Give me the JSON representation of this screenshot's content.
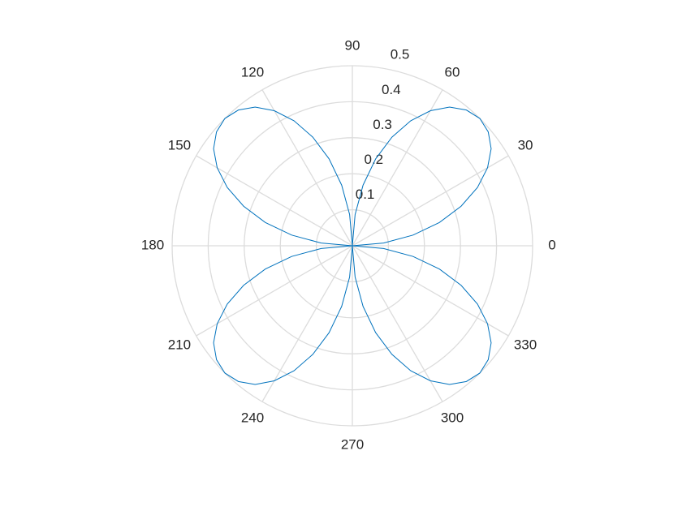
{
  "chart_data": {
    "type": "polar",
    "theta": [
      0,
      5,
      10,
      15,
      20,
      25,
      30,
      35,
      40,
      45,
      50,
      55,
      60,
      65,
      70,
      75,
      80,
      85,
      90,
      95,
      100,
      105,
      110,
      115,
      120,
      125,
      130,
      135,
      140,
      145,
      150,
      155,
      160,
      165,
      170,
      175,
      180,
      185,
      190,
      195,
      200,
      205,
      210,
      215,
      220,
      225,
      230,
      235,
      240,
      245,
      250,
      255,
      260,
      265,
      270,
      275,
      280,
      285,
      290,
      295,
      300,
      305,
      310,
      315,
      320,
      325,
      330,
      335,
      340,
      345,
      350,
      355,
      360
    ],
    "series": [
      {
        "color": "#0072bd",
        "values": [
          0,
          0.087,
          0.171,
          0.25,
          0.321,
          0.383,
          0.433,
          0.47,
          0.492,
          0.5,
          0.492,
          0.47,
          0.433,
          0.383,
          0.321,
          0.25,
          0.171,
          0.087,
          0,
          0.087,
          0.171,
          0.25,
          0.321,
          0.383,
          0.433,
          0.47,
          0.492,
          0.5,
          0.492,
          0.47,
          0.433,
          0.383,
          0.321,
          0.25,
          0.171,
          0.087,
          0,
          0.087,
          0.171,
          0.25,
          0.321,
          0.383,
          0.433,
          0.47,
          0.492,
          0.5,
          0.492,
          0.47,
          0.433,
          0.383,
          0.321,
          0.25,
          0.171,
          0.087,
          0,
          0.087,
          0.171,
          0.25,
          0.321,
          0.383,
          0.433,
          0.47,
          0.492,
          0.5,
          0.492,
          0.47,
          0.433,
          0.383,
          0.321,
          0.25,
          0.171,
          0.087,
          0
        ]
      }
    ],
    "thetaticks": [
      0,
      30,
      60,
      90,
      120,
      150,
      180,
      210,
      240,
      270,
      300,
      330
    ],
    "rlim": [
      0,
      0.5
    ],
    "rticks": [
      0.1,
      0.2,
      0.3,
      0.4,
      0.5
    ],
    "grid": true
  }
}
